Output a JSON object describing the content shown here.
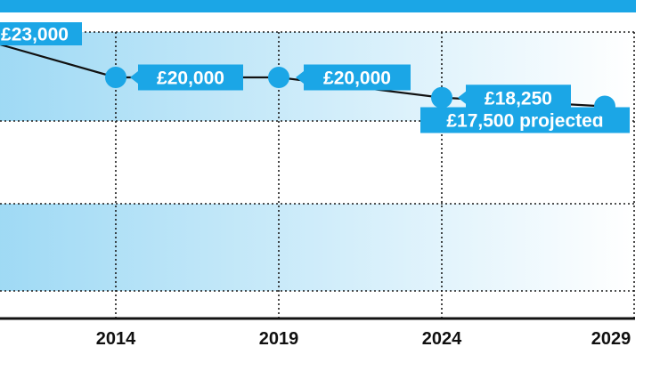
{
  "chart_data": {
    "type": "line",
    "title": "",
    "xlabel": "",
    "ylabel": "",
    "grid": true,
    "colors": {
      "accent": "#1ba6e6",
      "line": "#111111",
      "grid": "#1a1a1a",
      "band_light": "#ffffff"
    },
    "x_tick_labels": [
      "2014",
      "2019",
      "2024",
      "2029"
    ],
    "points": [
      {
        "x": 2014,
        "y": 20000,
        "label": "£20,000"
      },
      {
        "x": 2019,
        "y": 20000,
        "label": "£20,000"
      },
      {
        "x": 2024,
        "y": 18250,
        "label": "£18,250"
      },
      {
        "x": 2029,
        "y": 17500,
        "label": "£17,500 projected"
      }
    ],
    "partial_label": "£23,000",
    "partial_value": 23000
  }
}
